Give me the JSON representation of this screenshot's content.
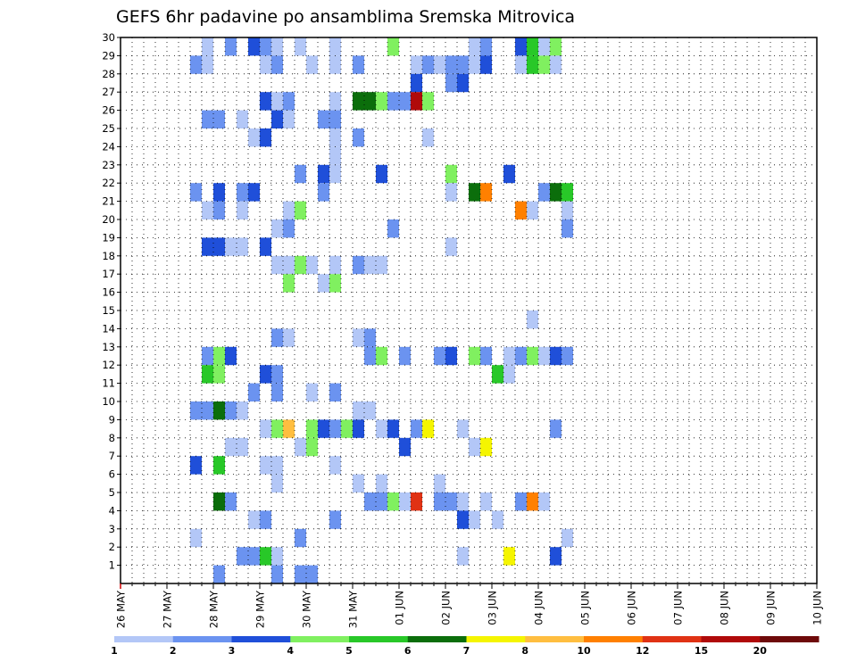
{
  "chart_data": {
    "type": "heatmap",
    "title": "GEFS 6hr padavine po ansamblima Sremska Mitrovica",
    "xlabel": "",
    "ylabel": "",
    "x_ticks": [
      "26 MAY",
      "27 MAY",
      "28 MAY",
      "29 MAY",
      "30 MAY",
      "31 MAY",
      "01 JUN",
      "02 JUN",
      "03 JUN",
      "04 JUN",
      "05 JUN",
      "06 JUN",
      "07 JUN",
      "08 JUN",
      "09 JUN",
      "10 JUN"
    ],
    "y_ticks": [
      1,
      2,
      3,
      4,
      5,
      6,
      7,
      8,
      9,
      10,
      11,
      12,
      13,
      14,
      15,
      16,
      17,
      18,
      19,
      20,
      21,
      22,
      23,
      24,
      25,
      26,
      27,
      28,
      29,
      30
    ],
    "x_range_steps_6h": [
      0,
      60
    ],
    "y_range": [
      0,
      30
    ],
    "grid": true,
    "legend": "bottom colorbar",
    "colorbar": {
      "labels": [
        "1",
        "2",
        "3",
        "4",
        "5",
        "6",
        "7",
        "8",
        "10",
        "12",
        "15",
        "20"
      ],
      "colors": [
        "#b3c7f7",
        "#6b93f0",
        "#1f4fd9",
        "#80f060",
        "#28c828",
        "#0b6e0b",
        "#f5f500",
        "#ffbe40",
        "#ff8000",
        "#e03214",
        "#b00a0a",
        "#6e0a0a"
      ]
    },
    "points_note": "value = colorbar class index (0..11); x = 6h step from 26 MAY 00z; y = ensemble member",
    "points": [
      [
        7,
        29,
        0
      ],
      [
        9,
        29,
        1
      ],
      [
        11,
        29,
        2
      ],
      [
        12,
        29,
        1
      ],
      [
        13,
        29,
        0
      ],
      [
        15,
        29,
        0
      ],
      [
        18,
        29,
        0
      ],
      [
        23,
        29,
        3
      ],
      [
        30,
        29,
        0
      ],
      [
        31,
        29,
        1
      ],
      [
        34,
        29,
        2
      ],
      [
        35,
        29,
        4
      ],
      [
        36,
        29,
        0
      ],
      [
        37,
        29,
        3
      ],
      [
        6,
        28,
        1
      ],
      [
        7,
        28,
        0
      ],
      [
        12,
        28,
        0
      ],
      [
        13,
        28,
        1
      ],
      [
        16,
        28,
        0
      ],
      [
        18,
        28,
        0
      ],
      [
        20,
        28,
        1
      ],
      [
        25,
        28,
        0
      ],
      [
        26,
        28,
        1
      ],
      [
        27,
        28,
        0
      ],
      [
        28,
        28,
        1
      ],
      [
        29,
        28,
        1
      ],
      [
        30,
        28,
        0
      ],
      [
        31,
        28,
        2
      ],
      [
        34,
        28,
        0
      ],
      [
        35,
        28,
        4
      ],
      [
        36,
        28,
        3
      ],
      [
        37,
        28,
        0
      ],
      [
        25,
        27,
        2
      ],
      [
        28,
        27,
        1
      ],
      [
        29,
        27,
        2
      ],
      [
        12,
        26,
        2
      ],
      [
        13,
        26,
        0
      ],
      [
        14,
        26,
        1
      ],
      [
        18,
        26,
        0
      ],
      [
        20,
        26,
        5
      ],
      [
        21,
        26,
        5
      ],
      [
        22,
        26,
        3
      ],
      [
        23,
        26,
        1
      ],
      [
        24,
        26,
        1
      ],
      [
        25,
        26,
        10
      ],
      [
        26,
        26,
        3
      ],
      [
        7,
        25,
        1
      ],
      [
        8,
        25,
        1
      ],
      [
        10,
        25,
        0
      ],
      [
        13,
        25,
        2
      ],
      [
        14,
        25,
        0
      ],
      [
        17,
        25,
        1
      ],
      [
        18,
        25,
        1
      ],
      [
        11,
        24,
        0
      ],
      [
        12,
        24,
        2
      ],
      [
        18,
        24,
        0
      ],
      [
        20,
        24,
        1
      ],
      [
        26,
        24,
        0
      ],
      [
        18,
        23,
        0
      ],
      [
        15,
        22,
        1
      ],
      [
        17,
        22,
        2
      ],
      [
        18,
        22,
        0
      ],
      [
        22,
        22,
        2
      ],
      [
        28,
        22,
        3
      ],
      [
        33,
        22,
        2
      ],
      [
        6,
        21,
        1
      ],
      [
        8,
        21,
        2
      ],
      [
        10,
        21,
        1
      ],
      [
        11,
        21,
        2
      ],
      [
        17,
        21,
        1
      ],
      [
        28,
        21,
        0
      ],
      [
        30,
        21,
        5
      ],
      [
        31,
        21,
        8
      ],
      [
        36,
        21,
        1
      ],
      [
        37,
        21,
        5
      ],
      [
        38,
        21,
        4
      ],
      [
        7,
        20,
        0
      ],
      [
        8,
        20,
        1
      ],
      [
        10,
        20,
        0
      ],
      [
        14,
        20,
        0
      ],
      [
        15,
        20,
        3
      ],
      [
        34,
        20,
        8
      ],
      [
        35,
        20,
        0
      ],
      [
        38,
        20,
        0
      ],
      [
        13,
        19,
        0
      ],
      [
        14,
        19,
        1
      ],
      [
        23,
        19,
        1
      ],
      [
        38,
        19,
        1
      ],
      [
        7,
        18,
        2
      ],
      [
        8,
        18,
        2
      ],
      [
        9,
        18,
        0
      ],
      [
        10,
        18,
        0
      ],
      [
        12,
        18,
        2
      ],
      [
        28,
        18,
        0
      ],
      [
        13,
        17,
        0
      ],
      [
        14,
        17,
        0
      ],
      [
        15,
        17,
        3
      ],
      [
        16,
        17,
        0
      ],
      [
        18,
        17,
        0
      ],
      [
        20,
        17,
        1
      ],
      [
        21,
        17,
        0
      ],
      [
        22,
        17,
        0
      ],
      [
        14,
        16,
        3
      ],
      [
        17,
        16,
        0
      ],
      [
        18,
        16,
        3
      ],
      [
        35,
        14,
        0
      ],
      [
        13,
        13,
        1
      ],
      [
        14,
        13,
        0
      ],
      [
        20,
        13,
        0
      ],
      [
        21,
        13,
        1
      ],
      [
        7,
        12,
        1
      ],
      [
        8,
        12,
        3
      ],
      [
        9,
        12,
        2
      ],
      [
        21,
        12,
        1
      ],
      [
        22,
        12,
        3
      ],
      [
        24,
        12,
        1
      ],
      [
        27,
        12,
        1
      ],
      [
        28,
        12,
        2
      ],
      [
        30,
        12,
        3
      ],
      [
        31,
        12,
        1
      ],
      [
        33,
        12,
        0
      ],
      [
        34,
        12,
        1
      ],
      [
        35,
        12,
        3
      ],
      [
        36,
        12,
        0
      ],
      [
        37,
        12,
        2
      ],
      [
        38,
        12,
        1
      ],
      [
        7,
        11,
        4
      ],
      [
        8,
        11,
        3
      ],
      [
        12,
        11,
        2
      ],
      [
        13,
        11,
        1
      ],
      [
        32,
        11,
        4
      ],
      [
        33,
        11,
        0
      ],
      [
        11,
        10,
        1
      ],
      [
        13,
        10,
        1
      ],
      [
        16,
        10,
        0
      ],
      [
        18,
        10,
        1
      ],
      [
        6,
        9,
        1
      ],
      [
        7,
        9,
        1
      ],
      [
        8,
        9,
        5
      ],
      [
        9,
        9,
        1
      ],
      [
        10,
        9,
        0
      ],
      [
        20,
        9,
        0
      ],
      [
        21,
        9,
        0
      ],
      [
        12,
        8,
        0
      ],
      [
        13,
        8,
        3
      ],
      [
        14,
        8,
        7
      ],
      [
        16,
        8,
        3
      ],
      [
        17,
        8,
        2
      ],
      [
        18,
        8,
        1
      ],
      [
        19,
        8,
        3
      ],
      [
        20,
        8,
        2
      ],
      [
        22,
        8,
        0
      ],
      [
        23,
        8,
        2
      ],
      [
        25,
        8,
        1
      ],
      [
        26,
        8,
        6
      ],
      [
        29,
        8,
        0
      ],
      [
        37,
        8,
        1
      ],
      [
        9,
        7,
        0
      ],
      [
        10,
        7,
        0
      ],
      [
        15,
        7,
        0
      ],
      [
        16,
        7,
        3
      ],
      [
        24,
        7,
        2
      ],
      [
        30,
        7,
        0
      ],
      [
        31,
        7,
        6
      ],
      [
        6,
        6,
        2
      ],
      [
        8,
        6,
        4
      ],
      [
        12,
        6,
        0
      ],
      [
        13,
        6,
        0
      ],
      [
        18,
        6,
        0
      ],
      [
        13,
        5,
        0
      ],
      [
        20,
        5,
        0
      ],
      [
        22,
        5,
        0
      ],
      [
        27,
        5,
        0
      ],
      [
        8,
        4,
        5
      ],
      [
        9,
        4,
        1
      ],
      [
        21,
        4,
        1
      ],
      [
        22,
        4,
        1
      ],
      [
        23,
        4,
        3
      ],
      [
        24,
        4,
        0
      ],
      [
        25,
        4,
        9
      ],
      [
        27,
        4,
        1
      ],
      [
        28,
        4,
        1
      ],
      [
        29,
        4,
        0
      ],
      [
        31,
        4,
        0
      ],
      [
        34,
        4,
        1
      ],
      [
        35,
        4,
        8
      ],
      [
        36,
        4,
        0
      ],
      [
        11,
        3,
        0
      ],
      [
        12,
        3,
        1
      ],
      [
        18,
        3,
        1
      ],
      [
        29,
        3,
        2
      ],
      [
        30,
        3,
        0
      ],
      [
        32,
        3,
        0
      ],
      [
        6,
        2,
        0
      ],
      [
        15,
        2,
        1
      ],
      [
        38,
        2,
        0
      ],
      [
        10,
        1,
        1
      ],
      [
        11,
        1,
        1
      ],
      [
        12,
        1,
        4
      ],
      [
        13,
        1,
        0
      ],
      [
        29,
        1,
        0
      ],
      [
        33,
        1,
        6
      ],
      [
        37,
        1,
        2
      ],
      [
        8,
        0,
        1
      ],
      [
        13,
        0,
        1
      ],
      [
        15,
        0,
        1
      ],
      [
        16,
        0,
        1
      ]
    ]
  }
}
